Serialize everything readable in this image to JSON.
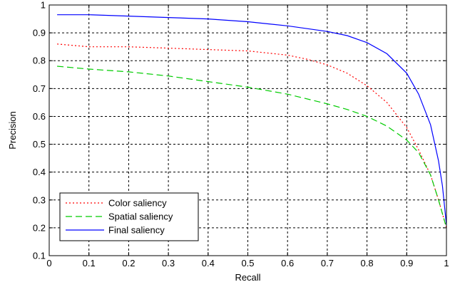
{
  "chart_data": {
    "type": "line",
    "title": "",
    "xlabel": "Recall",
    "ylabel": "Precision",
    "xlim": [
      0,
      1
    ],
    "ylim": [
      0.1,
      1
    ],
    "xticks": [
      0,
      0.1,
      0.2,
      0.3,
      0.4,
      0.5,
      0.6,
      0.7,
      0.8,
      0.9,
      1
    ],
    "xtick_labels": [
      "0",
      "0.1",
      "0.2",
      "0.3",
      "0.4",
      "0.5",
      "0.6",
      "0.7",
      "0.8",
      "0.9",
      "1"
    ],
    "yticks": [
      0.1,
      0.2,
      0.3,
      0.4,
      0.5,
      0.6,
      0.7,
      0.8,
      0.9,
      1
    ],
    "ytick_labels": [
      "0.1",
      "0.2",
      "0.3",
      "0.4",
      "0.5",
      "0.6",
      "0.7",
      "0.8",
      "0.9",
      "1"
    ],
    "grid": true,
    "legend_position": "bottom-left",
    "series": [
      {
        "name": "Color saliency",
        "color": "#ff0000",
        "style": "dotted",
        "x": [
          0.02,
          0.1,
          0.2,
          0.3,
          0.4,
          0.5,
          0.6,
          0.65,
          0.7,
          0.75,
          0.8,
          0.85,
          0.9,
          0.93,
          0.96,
          0.98,
          1.0
        ],
        "y": [
          0.86,
          0.85,
          0.85,
          0.845,
          0.84,
          0.835,
          0.82,
          0.805,
          0.785,
          0.755,
          0.71,
          0.65,
          0.56,
          0.48,
          0.39,
          0.3,
          0.2
        ]
      },
      {
        "name": "Spatial saliency",
        "color": "#00cc00",
        "style": "dashed",
        "x": [
          0.02,
          0.1,
          0.2,
          0.3,
          0.4,
          0.5,
          0.6,
          0.7,
          0.75,
          0.8,
          0.85,
          0.9,
          0.93,
          0.96,
          0.98,
          1.0
        ],
        "y": [
          0.78,
          0.77,
          0.76,
          0.745,
          0.725,
          0.705,
          0.68,
          0.645,
          0.625,
          0.6,
          0.565,
          0.515,
          0.47,
          0.39,
          0.3,
          0.2
        ]
      },
      {
        "name": "Final saliency",
        "color": "#0000ff",
        "style": "solid",
        "x": [
          0.02,
          0.1,
          0.2,
          0.3,
          0.4,
          0.5,
          0.6,
          0.7,
          0.75,
          0.8,
          0.85,
          0.9,
          0.93,
          0.96,
          0.98,
          0.99,
          1.0
        ],
        "y": [
          0.965,
          0.965,
          0.96,
          0.955,
          0.95,
          0.94,
          0.925,
          0.905,
          0.89,
          0.865,
          0.825,
          0.755,
          0.68,
          0.57,
          0.44,
          0.35,
          0.21
        ]
      }
    ]
  }
}
